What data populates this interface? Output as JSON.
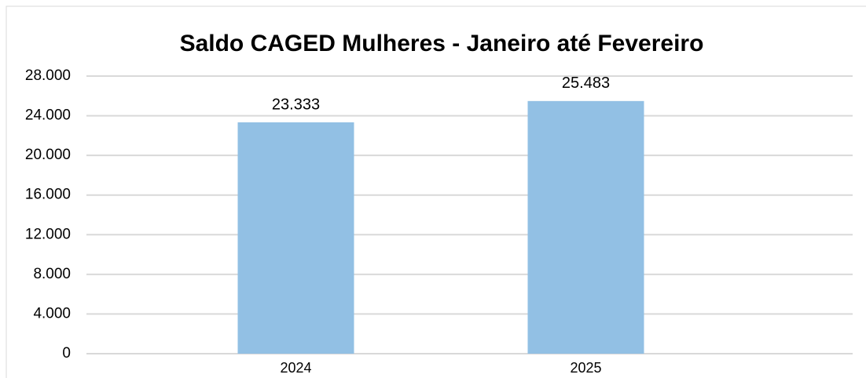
{
  "chart_data": {
    "type": "bar",
    "title": "Saldo CAGED Mulheres - Janeiro até Fevereiro",
    "categories": [
      "2024",
      "2025"
    ],
    "values": [
      23333,
      25483
    ],
    "value_labels": [
      "23.333",
      "25.483"
    ],
    "color": "#92c0e4",
    "ylim": [
      0,
      28000
    ],
    "yticks": [
      0,
      {
        "value": 4000,
        "label": "4.000"
      },
      {
        "value": 8000,
        "label": "8.000"
      },
      {
        "value": 12000,
        "label": "12.000"
      },
      {
        "value": 16000,
        "label": "16.000"
      },
      {
        "value": 20000,
        "label": "20.000"
      },
      {
        "value": 24000,
        "label": "24.000"
      },
      {
        "value": 28000,
        "label": "28.000"
      }
    ],
    "grid": true
  }
}
